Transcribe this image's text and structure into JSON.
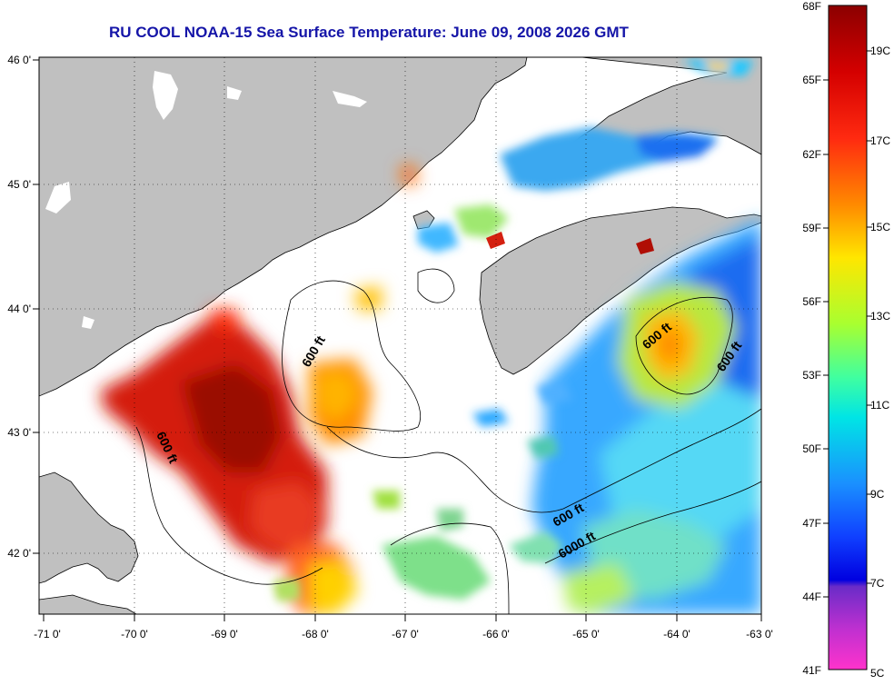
{
  "title": "RU COOL  NOAA-15  Sea Surface Temperature:  June 09, 2008 2026 GMT",
  "map": {
    "lon_ticks": [
      "-71 0'",
      "-70 0'",
      "-69 0'",
      "-68 0'",
      "-67 0'",
      "-66 0'",
      "-65 0'",
      "-64 0'",
      "-63 0'"
    ],
    "lat_ticks": [
      "46 0'",
      "45 0'",
      "44 0'",
      "43 0'",
      "42 0'"
    ],
    "contour_labels": [
      "600 ft",
      "600 ft",
      "600 ft",
      "600 ft",
      "600 ft",
      "6000 ft"
    ],
    "land_color": "#c0c0c0",
    "missing_color": "#ffffff"
  },
  "colorbar": {
    "f_labels": [
      "68F",
      "65F",
      "62F",
      "59F",
      "56F",
      "53F",
      "50F",
      "47F",
      "44F",
      "41F"
    ],
    "c_labels": [
      "19C",
      "17C",
      "15C",
      "13C",
      "11C",
      "9C",
      "7C",
      "5C"
    ],
    "colors": [
      "#8b0000",
      "#ff1a1a",
      "#ff8a00",
      "#ffe600",
      "#80ff40",
      "#00e5e5",
      "#1a7fff",
      "#0000e0",
      "#9933cc",
      "#ff33cc"
    ]
  }
}
